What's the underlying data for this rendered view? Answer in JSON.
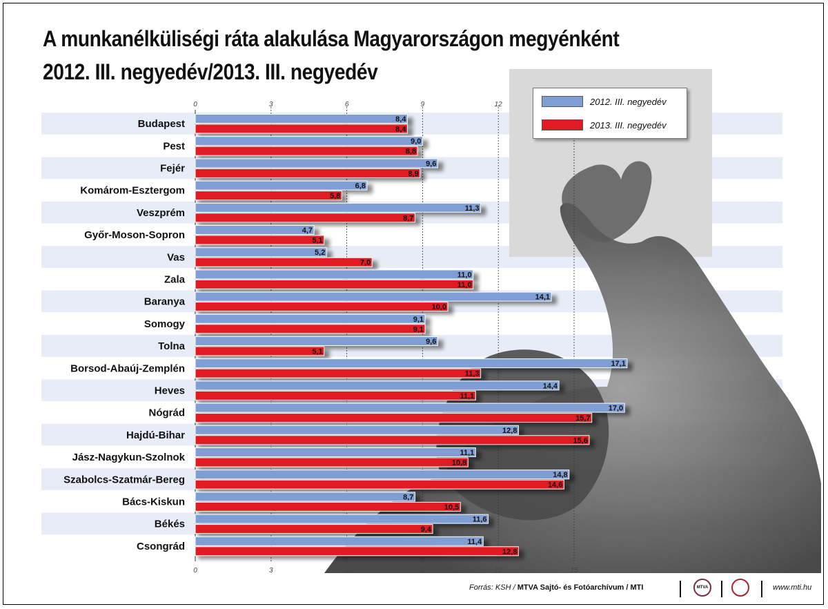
{
  "title": {
    "line1": "A munkanélküliségi ráta alakulása Magyarországon megyénként",
    "line2": "2012. III. negyedév/2013. III. negyedév"
  },
  "legend": {
    "series1": "2012. III. negyedév",
    "series2": "2013. III. negyedév"
  },
  "colors": {
    "series1": "#7f9fd4",
    "series2": "#e11b22",
    "band": "#e8ecf6",
    "photo_panel": "#d9d9d9"
  },
  "footer": {
    "source_prefix": "Forrás: KSH /",
    "source_bold": "MTVA Sajtó- és Fotóarchívum / MTI",
    "logo_text": "MTVA",
    "website": "www.mti.hu"
  },
  "chart_data": {
    "type": "bar",
    "orientation": "horizontal",
    "xlim": [
      0,
      18
    ],
    "ticks": [
      0,
      3,
      6,
      9,
      12,
      15
    ],
    "grid": true,
    "legend_position": "top-right",
    "categories": [
      "Budapest",
      "Pest",
      "Fejér",
      "Komárom-Esztergom",
      "Veszprém",
      "Győr-Moson-Sopron",
      "Vas",
      "Zala",
      "Baranya",
      "Somogy",
      "Tolna",
      "Borsod-Abaúj-Zemplén",
      "Heves",
      "Nógrád",
      "Hajdú-Bihar",
      "Jász-Nagykun-Szolnok",
      "Szabolcs-Szatmár-Bereg",
      "Bács-Kiskun",
      "Békés",
      "Csongrád"
    ],
    "series": [
      {
        "name": "2012. III. negyedév",
        "values": [
          8.4,
          9.0,
          9.6,
          6.8,
          11.3,
          4.7,
          5.2,
          11.0,
          14.1,
          9.1,
          9.6,
          17.1,
          14.4,
          17.0,
          12.8,
          11.1,
          14.8,
          8.7,
          11.6,
          11.4
        ]
      },
      {
        "name": "2013. III. negyedév",
        "values": [
          8.4,
          8.8,
          8.9,
          5.8,
          8.7,
          5.1,
          7.0,
          11.0,
          10.0,
          9.1,
          5.1,
          11.3,
          11.1,
          15.7,
          15.6,
          10.8,
          14.6,
          10.5,
          9.4,
          12.8
        ]
      }
    ]
  }
}
